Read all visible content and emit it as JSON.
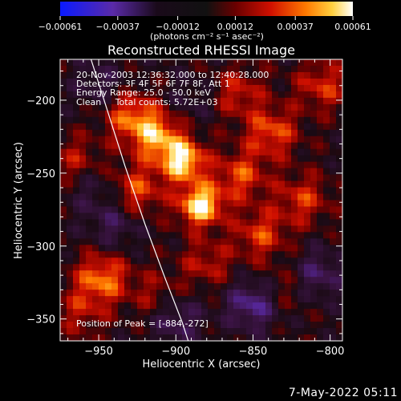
{
  "chart_data": {
    "type": "heatmap",
    "title": "Reconstructed RHESSI Image",
    "xlabel": "Heliocentric X (arcsec)",
    "ylabel": "Heliocentric Y (arcsec)",
    "xlim": [
      -975,
      -792
    ],
    "ylim": [
      -365,
      -172
    ],
    "xticks": [
      -950,
      -900,
      -850,
      -800
    ],
    "yticks": [
      -200,
      -250,
      -300,
      -350
    ],
    "xtick_labels": [
      "−950",
      "−900",
      "−850",
      "−800"
    ],
    "ytick_labels": [
      "−200",
      "−250",
      "−300",
      "−350"
    ],
    "colorbar": {
      "range": [
        -0.00061,
        0.00061
      ],
      "ticks": [
        -0.00061,
        -0.00037,
        -0.00012,
        0.00012,
        0.00037,
        0.00061
      ],
      "tick_labels": [
        "−0.00061",
        "−0.00037",
        "−0.00012",
        "0.00012",
        "0.00037",
        "0.00061"
      ],
      "units": "(photons cm⁻² s⁻¹ asec⁻²)",
      "colors": [
        "#0a1aff",
        "#5a2aa8",
        "#111111",
        "#6a0000",
        "#d01000",
        "#ff7a00",
        "#ffd040",
        "#ffffff"
      ]
    },
    "annotations": [
      "20-Nov-2003 12:36:32.000 to 12:40:28.000",
      "Detectors: 3F 4F 5F 6F 7F 8F, Att 1",
      "Energy Range: 25.0 - 50.0 keV",
      "Clean     Total counts: 5.72E+03"
    ],
    "peak_label": "Position of Peak = [-884,-272]",
    "peak": {
      "x": -884,
      "y": -272
    },
    "sources": [
      {
        "x": -884,
        "y": -272,
        "amplitude": 0.00061
      },
      {
        "x": -895,
        "y": -242,
        "amplitude": 0.00055
      },
      {
        "x": -912,
        "y": -225,
        "amplitude": 0.00045
      },
      {
        "x": -930,
        "y": -210,
        "amplitude": 0.00035
      },
      {
        "x": -925,
        "y": -262,
        "amplitude": 0.00032
      },
      {
        "x": -948,
        "y": -322,
        "amplitude": 0.0004
      },
      {
        "x": -858,
        "y": -252,
        "amplitude": 0.00032
      },
      {
        "x": -838,
        "y": -222,
        "amplitude": 0.00034
      },
      {
        "x": -818,
        "y": -268,
        "amplitude": 0.00028
      },
      {
        "x": -845,
        "y": -292,
        "amplitude": 0.0003
      },
      {
        "x": -805,
        "y": -190,
        "amplitude": 0.00028
      },
      {
        "x": -860,
        "y": -195,
        "amplitude": 0.00025
      },
      {
        "x": -965,
        "y": -242,
        "amplitude": 0.00022
      },
      {
        "x": -880,
        "y": -312,
        "amplitude": 0.00022
      },
      {
        "x": -913,
        "y": -334,
        "amplitude": 0.00018
      },
      {
        "x": -962,
        "y": -345,
        "amplitude": 0.0002
      },
      {
        "x": -830,
        "y": -330,
        "amplitude": 0.00015
      },
      {
        "x": -900,
        "y": -350,
        "amplitude": -0.00025
      },
      {
        "x": -850,
        "y": -340,
        "amplitude": -0.00035
      },
      {
        "x": -808,
        "y": -320,
        "amplitude": -0.00025
      },
      {
        "x": -940,
        "y": -285,
        "amplitude": -0.0002
      },
      {
        "x": -948,
        "y": -190,
        "amplitude": -0.00018
      },
      {
        "x": -955,
        "y": -260,
        "amplitude": -0.00015
      },
      {
        "x": -890,
        "y": -200,
        "amplitude": -0.00012
      }
    ],
    "limb_curve": [
      [
        -955,
        -172
      ],
      [
        -945,
        -205
      ],
      [
        -933,
        -245
      ],
      [
        -920,
        -285
      ],
      [
        -907,
        -322
      ],
      [
        -896,
        -352
      ],
      [
        -892,
        -365
      ]
    ]
  },
  "footer": {
    "date": "7-May-2022 05:11"
  }
}
